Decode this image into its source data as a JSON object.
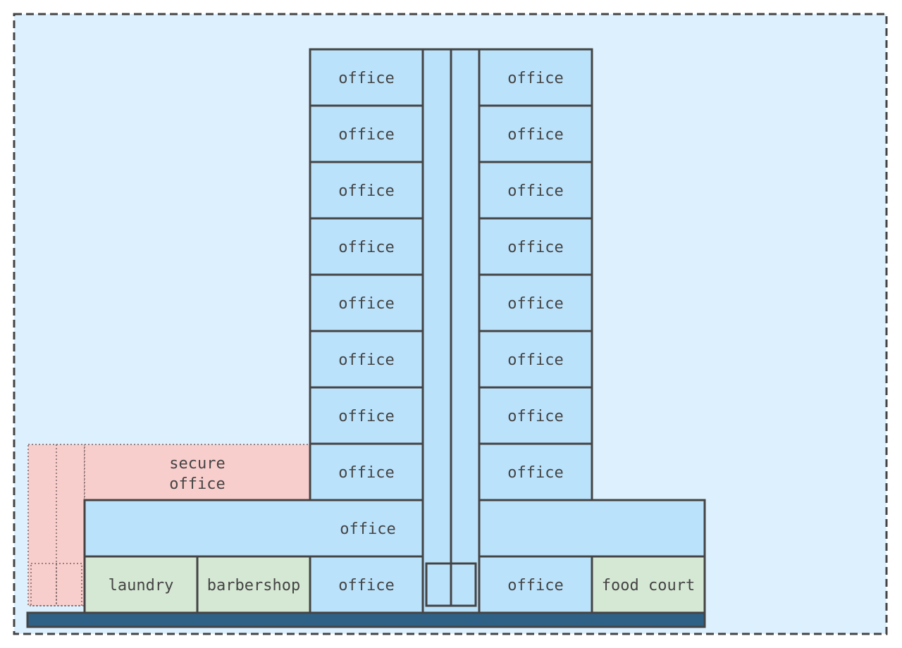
{
  "colors": {
    "canvas_bg": "#ddf0fe",
    "canvas_border": "#444444",
    "office_fill": "#bbe2fb",
    "service_fill": "#d5e8d4",
    "secure_fill": "#f8cecc",
    "secure_border": "#7a6464",
    "outline": "#444444",
    "ground_fill": "#2f6186",
    "text": "#444444"
  },
  "tower": {
    "left_column": [
      "office",
      "office",
      "office",
      "office",
      "office",
      "office",
      "office",
      "office"
    ],
    "right_column": [
      "office",
      "office",
      "office",
      "office",
      "office",
      "office",
      "office",
      "office"
    ]
  },
  "secure_office": {
    "label_line1": "secure",
    "label_line2": "office"
  },
  "podium": {
    "wide_office_label": "office",
    "right_wide_label": ""
  },
  "ground_floor": {
    "laundry": "laundry",
    "barbershop": "barbershop",
    "office_left": "office",
    "office_right": "office",
    "food_court": "food court"
  },
  "core": {
    "elevator_icon": "elevator-icon"
  }
}
